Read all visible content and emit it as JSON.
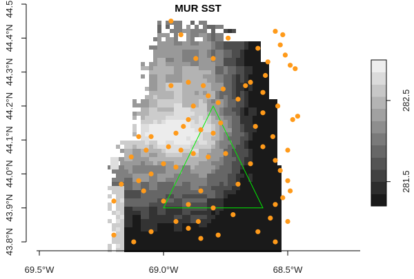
{
  "chart_data": {
    "type": "heatmap",
    "title": "MUR SST",
    "x_axis": {
      "range": [
        -69.65,
        -68.2
      ],
      "ticks": [
        {
          "value": -69.5,
          "label": "69.5°W"
        },
        {
          "value": -69.0,
          "label": "69.0°W"
        },
        {
          "value": -68.5,
          "label": "68.5°W"
        }
      ]
    },
    "y_axis": {
      "range": [
        43.79,
        44.5
      ],
      "ticks": [
        {
          "value": 43.8,
          "label": "43.8°N"
        },
        {
          "value": 43.9,
          "label": "43.9°N"
        },
        {
          "value": 44.0,
          "label": "44.0°N"
        },
        {
          "value": 44.1,
          "label": "44.1°N"
        },
        {
          "value": 44.2,
          "label": "44.2°N"
        },
        {
          "value": 44.3,
          "label": "44.3°N"
        },
        {
          "value": 44.4,
          "label": "44.4°N"
        },
        {
          "value": 44.5,
          "label": "44.5°N"
        }
      ]
    },
    "colorbar": {
      "palette": "grayscale",
      "range": [
        281.2,
        283.0
      ],
      "ticks": [
        {
          "value": 281.5,
          "label": "281.5"
        },
        {
          "value": 282.5,
          "label": "282.5"
        }
      ]
    },
    "triangle": {
      "color": "#00ee00",
      "vertices": [
        {
          "lon": -68.8,
          "lat": 44.2
        },
        {
          "lon": -69.0,
          "lat": 43.9
        },
        {
          "lon": -68.6,
          "lat": 43.9
        }
      ]
    },
    "points": {
      "color": "#ff9a1a",
      "coords": [
        [
          -68.97,
          44.45
        ],
        [
          -68.93,
          44.41
        ],
        [
          -68.87,
          44.34
        ],
        [
          -68.8,
          44.34
        ],
        [
          -68.74,
          44.4
        ],
        [
          -68.62,
          44.37
        ],
        [
          -68.58,
          44.33
        ],
        [
          -68.55,
          44.42
        ],
        [
          -68.52,
          44.41
        ],
        [
          -68.51,
          44.35
        ],
        [
          -68.49,
          44.32
        ],
        [
          -68.54,
          44.2
        ],
        [
          -68.6,
          44.24
        ],
        [
          -68.65,
          44.27
        ],
        [
          -68.7,
          44.22
        ],
        [
          -68.82,
          44.23
        ],
        [
          -68.76,
          44.25
        ],
        [
          -68.84,
          44.26
        ],
        [
          -68.78,
          44.21
        ],
        [
          -68.9,
          44.27
        ],
        [
          -68.97,
          44.26
        ],
        [
          -68.88,
          44.2
        ],
        [
          -69.05,
          44.11
        ],
        [
          -69.1,
          44.11
        ],
        [
          -68.95,
          44.12
        ],
        [
          -68.9,
          44.16
        ],
        [
          -68.85,
          44.13
        ],
        [
          -68.8,
          44.12
        ],
        [
          -68.77,
          44.15
        ],
        [
          -68.82,
          44.05
        ],
        [
          -68.88,
          44.06
        ],
        [
          -68.93,
          44.07
        ],
        [
          -68.95,
          44.02
        ],
        [
          -69.0,
          44.03
        ],
        [
          -69.05,
          44.0
        ],
        [
          -69.1,
          43.98
        ],
        [
          -69.17,
          43.97
        ],
        [
          -69.2,
          43.92
        ],
        [
          -69.08,
          43.95
        ],
        [
          -69.0,
          43.92
        ],
        [
          -68.9,
          43.91
        ],
        [
          -68.86,
          43.86
        ],
        [
          -68.8,
          43.9
        ],
        [
          -68.72,
          43.88
        ],
        [
          -68.7,
          43.97
        ],
        [
          -68.65,
          44.03
        ],
        [
          -68.6,
          44.08
        ],
        [
          -68.55,
          44.04
        ],
        [
          -68.53,
          44.01
        ],
        [
          -68.5,
          43.98
        ],
        [
          -68.52,
          43.93
        ],
        [
          -68.55,
          43.91
        ],
        [
          -68.57,
          43.87
        ],
        [
          -68.5,
          43.86
        ],
        [
          -68.49,
          43.95
        ],
        [
          -69.2,
          43.82
        ],
        [
          -69.12,
          43.8
        ],
        [
          -69.05,
          43.83
        ],
        [
          -68.95,
          43.86
        ],
        [
          -68.9,
          43.84
        ],
        [
          -68.85,
          43.81
        ],
        [
          -68.78,
          43.82
        ],
        [
          -68.62,
          43.83
        ],
        [
          -68.55,
          43.8
        ],
        [
          -68.5,
          44.07
        ],
        [
          -68.48,
          44.16
        ],
        [
          -68.6,
          44.18
        ],
        [
          -68.67,
          44.26
        ],
        [
          -68.59,
          44.29
        ],
        [
          -68.63,
          44.14
        ],
        [
          -68.92,
          44.14
        ],
        [
          -68.98,
          44.08
        ],
        [
          -69.07,
          44.07
        ],
        [
          -69.13,
          44.05
        ],
        [
          -68.85,
          43.95
        ],
        [
          -68.75,
          44.06
        ],
        [
          -68.56,
          44.11
        ],
        [
          -68.46,
          44.17
        ],
        [
          -68.47,
          44.31
        ],
        [
          -68.53,
          44.38
        ]
      ]
    }
  }
}
